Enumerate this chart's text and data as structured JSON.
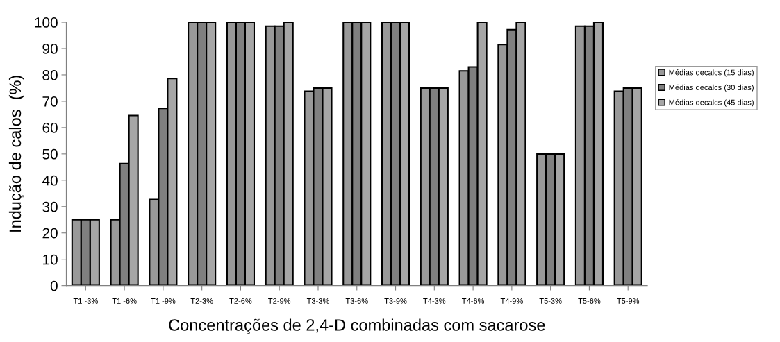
{
  "chart_data": {
    "type": "bar",
    "xlabel": "Concentrações de 2,4-D combinadas com sacarose",
    "ylabel": "Indução de calos  (%)",
    "categories": [
      "T1 -3%",
      "T1 -6%",
      "T1 -9%",
      "T2-3%",
      "T2-6%",
      "T2-9%",
      "T3-3%",
      "T3-6%",
      "T3-9%",
      "T4-3%",
      "T4-6%",
      "T4-9%",
      "T5-3%",
      "T5-6%",
      "T5-9%"
    ],
    "series": [
      {
        "name": "Médias decalcs (15 dias)",
        "color": "#999999",
        "values": [
          25,
          25,
          32.7,
          100,
          100,
          98.5,
          73.8,
          100,
          100,
          75,
          81.5,
          91.5,
          50,
          98.5,
          73.8
        ]
      },
      {
        "name": "Médias decalcs (30 dias)",
        "color": "#808080",
        "values": [
          25,
          46.3,
          67.3,
          100,
          100,
          98.5,
          75,
          100,
          100,
          75,
          83,
          97.2,
          50,
          98.5,
          75
        ]
      },
      {
        "name": "Médias decalcs (45 dias)",
        "color": "#a6a6a6",
        "values": [
          25,
          64.6,
          78.6,
          100,
          100,
          100,
          75,
          100,
          100,
          75,
          100,
          100,
          50,
          100,
          75
        ]
      }
    ],
    "ylim": [
      0,
      100
    ],
    "yticks": [
      0,
      10,
      20,
      30,
      40,
      50,
      60,
      70,
      80,
      90,
      100
    ],
    "grid": false,
    "legend": "right"
  }
}
